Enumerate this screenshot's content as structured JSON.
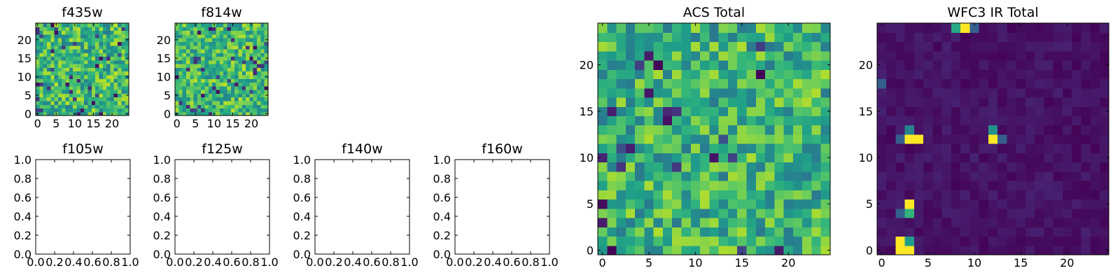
{
  "figure": {
    "colormap": "viridis",
    "background": "#ffffff"
  },
  "chart_data": [
    {
      "id": "f435w",
      "type": "heatmap",
      "title": "f435w",
      "grid": false,
      "shape": [
        25,
        25
      ],
      "xticks": [
        "0",
        "5",
        "10",
        "15",
        "20"
      ],
      "yticks": [
        "0",
        "5",
        "10",
        "15",
        "20"
      ],
      "value_range": [
        0,
        1
      ],
      "seed": 11,
      "base": 0.66,
      "spread": 0.24,
      "low_rate": 0.05,
      "peaks": []
    },
    {
      "id": "f814w",
      "type": "heatmap",
      "title": "f814w",
      "grid": false,
      "shape": [
        25,
        25
      ],
      "xticks": [
        "0",
        "5",
        "10",
        "15",
        "20"
      ],
      "yticks": [
        "0",
        "5",
        "10",
        "15",
        "20"
      ],
      "value_range": [
        0,
        1
      ],
      "seed": 23,
      "base": 0.68,
      "spread": 0.22,
      "low_rate": 0.05,
      "peaks": []
    },
    {
      "id": "f105w",
      "type": "heatmap",
      "title": "f105w",
      "empty": true,
      "xlim": [
        0,
        1
      ],
      "ylim": [
        0,
        1
      ],
      "xticks": [
        "0.0",
        "0.2",
        "0.4",
        "0.6",
        "0.8",
        "1.0"
      ],
      "yticks": [
        "0.0",
        "0.2",
        "0.4",
        "0.6",
        "0.8",
        "1.0"
      ]
    },
    {
      "id": "f125w",
      "type": "heatmap",
      "title": "f125w",
      "empty": true,
      "xlim": [
        0,
        1
      ],
      "ylim": [
        0,
        1
      ],
      "xticks": [
        "0.0",
        "0.2",
        "0.4",
        "0.6",
        "0.8",
        "1.0"
      ],
      "yticks": [
        "0.0",
        "0.2",
        "0.4",
        "0.6",
        "0.8",
        "1.0"
      ]
    },
    {
      "id": "f140w",
      "type": "heatmap",
      "title": "f140w",
      "empty": true,
      "xlim": [
        0,
        1
      ],
      "ylim": [
        0,
        1
      ],
      "xticks": [
        "0.0",
        "0.2",
        "0.4",
        "0.6",
        "0.8",
        "1.0"
      ],
      "yticks": [
        "0.0",
        "0.2",
        "0.4",
        "0.6",
        "0.8",
        "1.0"
      ]
    },
    {
      "id": "f160w",
      "type": "heatmap",
      "title": "f160w",
      "empty": true,
      "xlim": [
        0,
        1
      ],
      "ylim": [
        0,
        1
      ],
      "xticks": [
        "0.0",
        "0.2",
        "0.4",
        "0.6",
        "0.8",
        "1.0"
      ],
      "yticks": [
        "0.0",
        "0.2",
        "0.4",
        "0.6",
        "0.8",
        "1.0"
      ]
    },
    {
      "id": "acs_total",
      "type": "heatmap",
      "title": "ACS Total",
      "grid": false,
      "shape": [
        25,
        25
      ],
      "xticks": [
        "0",
        "5",
        "10",
        "15",
        "20"
      ],
      "yticks": [
        "0",
        "5",
        "10",
        "15",
        "20"
      ],
      "value_range": [
        0,
        1
      ],
      "seed": 37,
      "base": 0.64,
      "spread": 0.24,
      "low_rate": 0.04,
      "peaks": []
    },
    {
      "id": "wfc3_ir_total",
      "type": "heatmap",
      "title": "WFC3 IR Total",
      "grid": false,
      "shape": [
        25,
        25
      ],
      "xticks": [
        "0",
        "5",
        "10",
        "15",
        "20"
      ],
      "yticks": [
        "0",
        "5",
        "10",
        "15",
        "20"
      ],
      "value_range": [
        0,
        1
      ],
      "seed": 53,
      "base": 0.05,
      "spread": 0.04,
      "low_rate": 0,
      "peaks": [
        {
          "x": 2,
          "y": 0,
          "v": 1.0
        },
        {
          "x": 2,
          "y": 1,
          "v": 1.0
        },
        {
          "x": 3,
          "y": 0,
          "v": 1.0
        },
        {
          "x": 3,
          "y": 1,
          "v": 0.55
        },
        {
          "x": 3,
          "y": 4,
          "v": 0.65
        },
        {
          "x": 3,
          "y": 5,
          "v": 1.0
        },
        {
          "x": 2,
          "y": 4,
          "v": 0.3
        },
        {
          "x": 2,
          "y": 12,
          "v": 0.3
        },
        {
          "x": 3,
          "y": 12,
          "v": 1.0
        },
        {
          "x": 4,
          "y": 12,
          "v": 1.0
        },
        {
          "x": 3,
          "y": 13,
          "v": 0.45
        },
        {
          "x": 12,
          "y": 12,
          "v": 1.0
        },
        {
          "x": 12,
          "y": 13,
          "v": 0.5
        },
        {
          "x": 13,
          "y": 12,
          "v": 0.3
        },
        {
          "x": 8,
          "y": 24,
          "v": 0.6
        },
        {
          "x": 9,
          "y": 24,
          "v": 1.0
        },
        {
          "x": 10,
          "y": 24,
          "v": 0.3
        },
        {
          "x": 0,
          "y": 18,
          "v": 0.3
        }
      ]
    }
  ]
}
